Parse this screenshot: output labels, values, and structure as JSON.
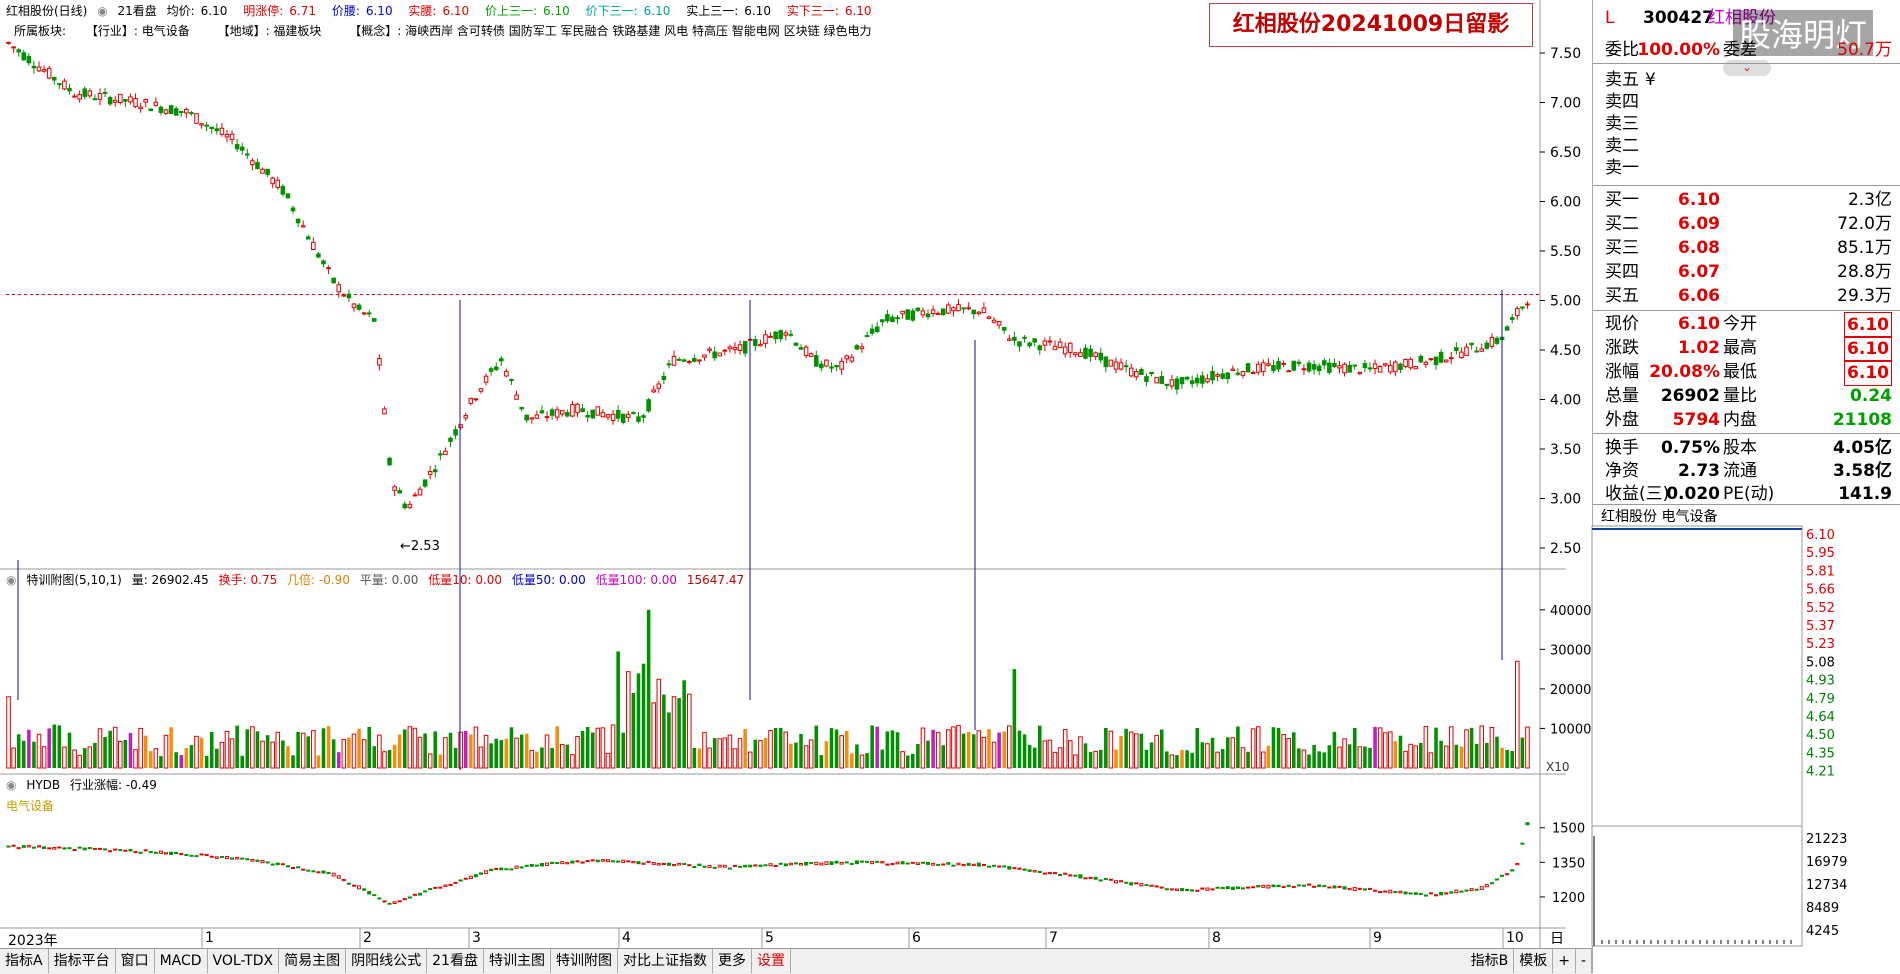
{
  "header": {
    "title": "红相股份(日线)",
    "pill": "21看盘",
    "avg_label": "均价:",
    "avg_value": "6.10",
    "limitup_label": "明涨停:",
    "limitup_value": "6.71",
    "val_label": "价腰:",
    "val_value": "6.10",
    "real_label": "实腰:",
    "real_value": "6.10",
    "up3_label": "价上三一:",
    "up3_value": "6.10",
    "down3_label": "价下三一:",
    "down3_value": "6.10",
    "realup3_label": "实上三一:",
    "realup3_value": "6.10",
    "realdown3_label": "实下三一:",
    "realdown3_value": "6.10"
  },
  "sector_line": {
    "label": "所属板块:",
    "industry": "【行业】: 电气设备",
    "region": "【地域】: 福建板块",
    "concept": "【概念】: 海峡西岸 含可转债 国防军工 军民融合 铁路基建 风电 特高压 智能电网 区块链 绿色电力"
  },
  "stamp": "红相股份20241009日留影",
  "price_axis": [
    "7.50",
    "7.00",
    "6.50",
    "6.00",
    "5.50",
    "5.00",
    "4.50",
    "4.00",
    "3.50",
    "3.00",
    "2.50"
  ],
  "low_marker": "2.53",
  "vol_header": {
    "name": "特训附图(5,10,1)",
    "vol": "量: 26902.45",
    "turnover": "换手: 0.75",
    "ratio": "几倍: -0.90",
    "flat": "平量: 0.00",
    "low10": "低量10: 0.00",
    "low50": "低量50: 0.00",
    "low100": "低量100: 0.00",
    "last": "15647.47"
  },
  "vol_axis": [
    "40000",
    "30000",
    "20000",
    "10000"
  ],
  "vol_unit": "X10",
  "ind_header": {
    "name": "HYDB",
    "label": "行业涨幅: -0.49",
    "sector": "电气设备"
  },
  "ind_axis": [
    "1500",
    "1350",
    "1200"
  ],
  "x_labels": [
    "2023年",
    "1",
    "2",
    "3",
    "4",
    "5",
    "6",
    "7",
    "8",
    "9",
    "10"
  ],
  "period": "日线",
  "tabs": [
    "指标A",
    "指标平台",
    "窗口",
    "MACD",
    "VOL-TDX",
    "简易主图",
    "阴阳线公式",
    "21看盘",
    "特训主图",
    "特训附图",
    "对比上证指数",
    "更多",
    "设置"
  ],
  "tabs_right": [
    "指标B",
    "模板",
    "+",
    "-"
  ],
  "quote": {
    "code_prefix": "L",
    "code": "300427",
    "name": "红相股份",
    "weibi_label": "委比",
    "weibi_value": "100.00%",
    "weicha_label": "委差",
    "weicha_value": "50.7万",
    "sell": [
      {
        "label": "卖五",
        "price": "",
        "vol": ""
      },
      {
        "label": "卖四",
        "price": "",
        "vol": ""
      },
      {
        "label": "卖三",
        "price": "",
        "vol": ""
      },
      {
        "label": "卖二",
        "price": "",
        "vol": ""
      },
      {
        "label": "卖一",
        "price": "",
        "vol": ""
      }
    ],
    "sell_extra": "¥",
    "buy": [
      {
        "label": "买一",
        "price": "6.10",
        "vol": "2.3亿"
      },
      {
        "label": "买二",
        "price": "6.09",
        "vol": "72.0万"
      },
      {
        "label": "买三",
        "price": "6.08",
        "vol": "85.1万"
      },
      {
        "label": "买四",
        "price": "6.07",
        "vol": "28.8万"
      },
      {
        "label": "买五",
        "price": "6.06",
        "vol": "29.3万"
      }
    ],
    "stats": [
      {
        "l": "现价",
        "v": "6.10",
        "l2": "今开",
        "v2": "6.10"
      },
      {
        "l": "涨跌",
        "v": "1.02",
        "l2": "最高",
        "v2": "6.10"
      },
      {
        "l": "涨幅",
        "v": "20.08%",
        "l2": "最低",
        "v2": "6.10"
      },
      {
        "l": "总量",
        "v": "26902",
        "l2": "量比",
        "v2": "0.24"
      },
      {
        "l": "外盘",
        "v": "5794",
        "l2": "内盘",
        "v2": "21108"
      }
    ],
    "stats2": [
      {
        "l": "换手",
        "v": "0.75%",
        "l2": "股本",
        "v2": "4.05亿"
      },
      {
        "l": "净资",
        "v": "2.73",
        "l2": "流通",
        "v2": "3.58亿"
      },
      {
        "l": "收益(三)",
        "v": "0.020",
        "l2": "PE(动)",
        "v2": "141.9"
      }
    ],
    "mini_title": "红相股份 电气设备",
    "mini_axis": [
      "6.10",
      "5.95",
      "5.81",
      "5.66",
      "5.52",
      "5.37",
      "5.23",
      "5.08",
      "4.93",
      "4.79",
      "4.64",
      "4.50",
      "4.35",
      "4.21"
    ],
    "mini_vol_axis": [
      "21223",
      "16979",
      "12734",
      "8489",
      "4245"
    ],
    "watermark": "股海明灯"
  },
  "colors": {
    "up": "#e00000",
    "down": "#009000",
    "vol_orange": "#f09010",
    "purple": "#c020c0",
    "blue": "#1010a0"
  }
}
